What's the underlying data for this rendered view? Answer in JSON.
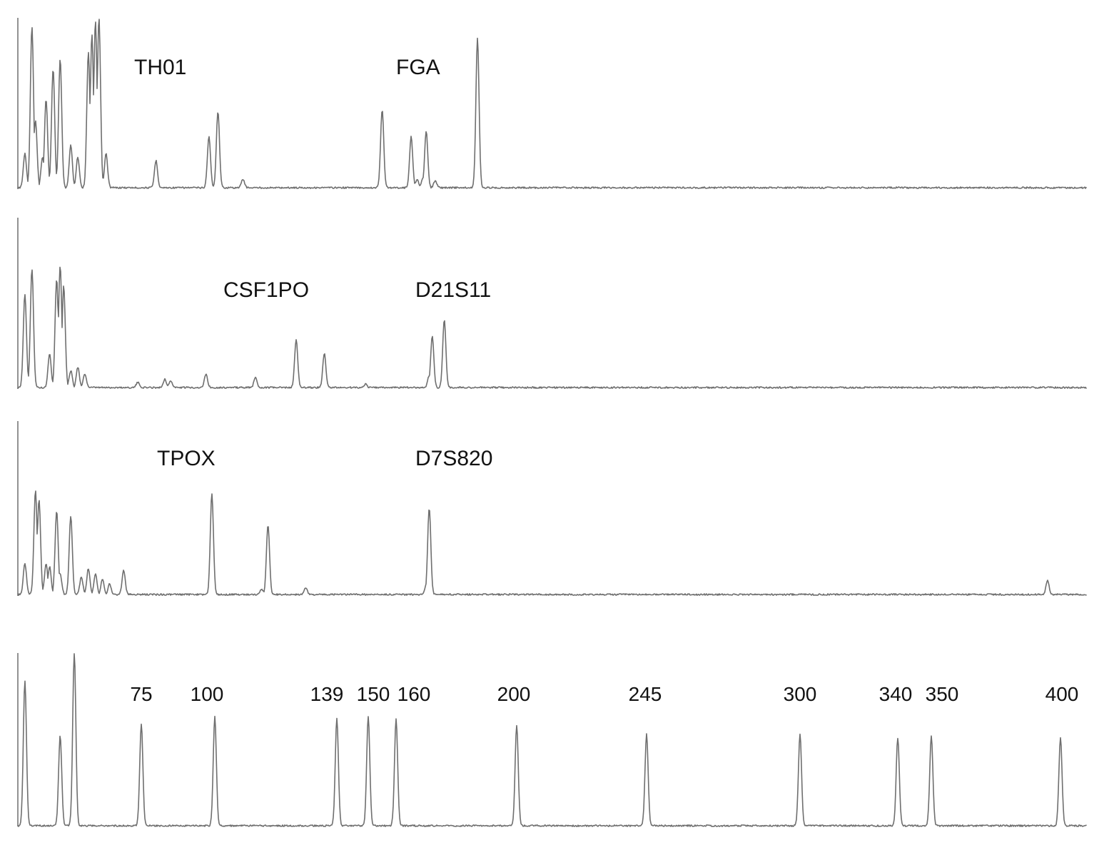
{
  "colors": {
    "background": "#ffffff",
    "trace": "#6f6f6f",
    "text": "#111111"
  },
  "chart_data": [
    {
      "type": "line",
      "panel": "electropherogram-1",
      "title": "",
      "xlabel": "",
      "ylabel": "",
      "loci": [
        {
          "name": "TH01",
          "x": 165
        },
        {
          "name": "FGA",
          "x": 224
        }
      ],
      "xlim": [
        40,
        430
      ],
      "ylim": [
        0,
        100
      ],
      "peaks": [
        {
          "x": 42,
          "h": 20
        },
        {
          "x": 44,
          "h": 95
        },
        {
          "x": 45,
          "h": 40
        },
        {
          "x": 47,
          "h": 18
        },
        {
          "x": 48,
          "h": 52
        },
        {
          "x": 50,
          "h": 70
        },
        {
          "x": 52,
          "h": 76
        },
        {
          "x": 55,
          "h": 25
        },
        {
          "x": 57,
          "h": 18
        },
        {
          "x": 60,
          "h": 80
        },
        {
          "x": 61,
          "h": 90
        },
        {
          "x": 62,
          "h": 98
        },
        {
          "x": 63,
          "h": 100
        },
        {
          "x": 65,
          "h": 20
        },
        {
          "x": 80,
          "h": 16
        },
        {
          "x": 98,
          "h": 30
        },
        {
          "x": 101,
          "h": 45
        },
        {
          "x": 109,
          "h": 5
        },
        {
          "x": 155,
          "h": 46
        },
        {
          "x": 165,
          "h": 30
        },
        {
          "x": 167,
          "h": 5
        },
        {
          "x": 169,
          "h": 6
        },
        {
          "x": 170,
          "h": 33
        },
        {
          "x": 173,
          "h": 4
        },
        {
          "x": 187,
          "h": 88
        }
      ]
    },
    {
      "type": "line",
      "panel": "electropherogram-2",
      "title": "",
      "xlabel": "",
      "ylabel": "",
      "loci": [
        {
          "name": "CSF1PO",
          "x": 130
        },
        {
          "name": "D21S11",
          "x": 191
        }
      ],
      "xlim": [
        40,
        430
      ],
      "ylim": [
        0,
        100
      ],
      "peaks": [
        {
          "x": 42,
          "h": 55
        },
        {
          "x": 44,
          "h": 70
        },
        {
          "x": 49,
          "h": 20
        },
        {
          "x": 51,
          "h": 64
        },
        {
          "x": 52,
          "h": 72
        },
        {
          "x": 53,
          "h": 60
        },
        {
          "x": 55,
          "h": 10
        },
        {
          "x": 57,
          "h": 12
        },
        {
          "x": 59,
          "h": 8
        },
        {
          "x": 74,
          "h": 3
        },
        {
          "x": 83,
          "h": 5
        },
        {
          "x": 85,
          "h": 4
        },
        {
          "x": 97,
          "h": 8
        },
        {
          "x": 113,
          "h": 6
        },
        {
          "x": 126,
          "h": 28
        },
        {
          "x": 135,
          "h": 20
        },
        {
          "x": 149,
          "h": 2
        },
        {
          "x": 171,
          "h": 7
        },
        {
          "x": 172,
          "h": 30
        },
        {
          "x": 176,
          "h": 40
        }
      ]
    },
    {
      "type": "line",
      "panel": "electropherogram-3",
      "title": "",
      "xlabel": "",
      "ylabel": "",
      "loci": [
        {
          "name": "TPOX",
          "x": 98
        },
        {
          "name": "D7S820",
          "x": 191
        }
      ],
      "xlim": [
        40,
        430
      ],
      "ylim": [
        0,
        100
      ],
      "peaks": [
        {
          "x": 42,
          "h": 18
        },
        {
          "x": 45,
          "h": 60
        },
        {
          "x": 46,
          "h": 55
        },
        {
          "x": 48,
          "h": 18
        },
        {
          "x": 49,
          "h": 16
        },
        {
          "x": 51,
          "h": 48
        },
        {
          "x": 52,
          "h": 12
        },
        {
          "x": 55,
          "h": 45
        },
        {
          "x": 58,
          "h": 10
        },
        {
          "x": 60,
          "h": 15
        },
        {
          "x": 62,
          "h": 12
        },
        {
          "x": 64,
          "h": 9
        },
        {
          "x": 66,
          "h": 6
        },
        {
          "x": 70,
          "h": 14
        },
        {
          "x": 99,
          "h": 58
        },
        {
          "x": 117,
          "h": 40
        },
        {
          "x": 115,
          "h": 3
        },
        {
          "x": 129,
          "h": 4
        },
        {
          "x": 170,
          "h": 5
        },
        {
          "x": 171,
          "h": 50
        },
        {
          "x": 395,
          "h": 8
        }
      ]
    },
    {
      "type": "line",
      "panel": "size-standard",
      "title": "",
      "xlabel": "",
      "ylabel": "",
      "size_labels": [
        "75",
        "100",
        "139",
        "150",
        "160",
        "200",
        "245",
        "300",
        "340",
        "350",
        "400"
      ],
      "xlim": [
        40,
        430
      ],
      "ylim": [
        0,
        100
      ],
      "peaks": [
        {
          "x": 42,
          "h": 84
        },
        {
          "x": 52,
          "h": 52
        },
        {
          "x": 56,
          "h": 100
        },
        {
          "x": 75,
          "h": 59
        },
        {
          "x": 100,
          "h": 63
        },
        {
          "x": 139,
          "h": 62
        },
        {
          "x": 150,
          "h": 63
        },
        {
          "x": 160,
          "h": 62
        },
        {
          "x": 200,
          "h": 58
        },
        {
          "x": 245,
          "h": 53
        },
        {
          "x": 300,
          "h": 53
        },
        {
          "x": 340,
          "h": 51
        },
        {
          "x": 350,
          "h": 52
        },
        {
          "x": 400,
          "h": 51
        }
      ]
    }
  ]
}
